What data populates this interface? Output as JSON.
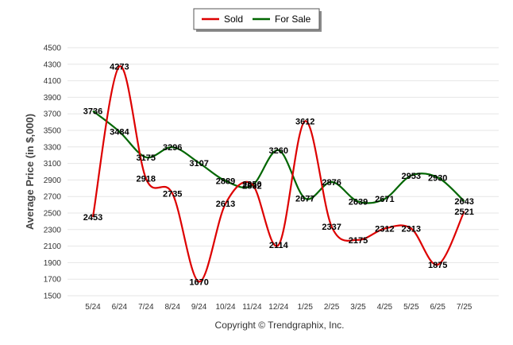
{
  "chart_data": {
    "type": "line",
    "title": "",
    "xlabel": "",
    "ylabel": "Average Price (in $,000)",
    "categories": [
      "5/24",
      "6/24",
      "7/24",
      "8/24",
      "9/24",
      "10/24",
      "11/24",
      "12/24",
      "1/25",
      "2/25",
      "3/25",
      "4/25",
      "5/25",
      "6/25",
      "7/25"
    ],
    "ylim": [
      1500,
      4500
    ],
    "yticks": [
      1500,
      1700,
      1900,
      2100,
      2300,
      2500,
      2700,
      2900,
      3100,
      3300,
      3500,
      3700,
      3900,
      4100,
      4300,
      4500
    ],
    "grid": true,
    "legend_position": "top-center",
    "series": [
      {
        "name": "Sold",
        "color": "#dd0000",
        "values": [
          2453,
          4273,
          2918,
          2735,
          1670,
          2613,
          2850,
          2114,
          3612,
          2337,
          2175,
          2312,
          2313,
          1875,
          2521
        ]
      },
      {
        "name": "For Sale",
        "color": "#006600",
        "values": [
          3736,
          3484,
          3175,
          3296,
          3107,
          2889,
          2832,
          3260,
          2677,
          2876,
          2639,
          2671,
          2953,
          2930,
          2643
        ]
      }
    ]
  },
  "footer": {
    "credit": "Copyright © Trendgraphix, Inc."
  }
}
